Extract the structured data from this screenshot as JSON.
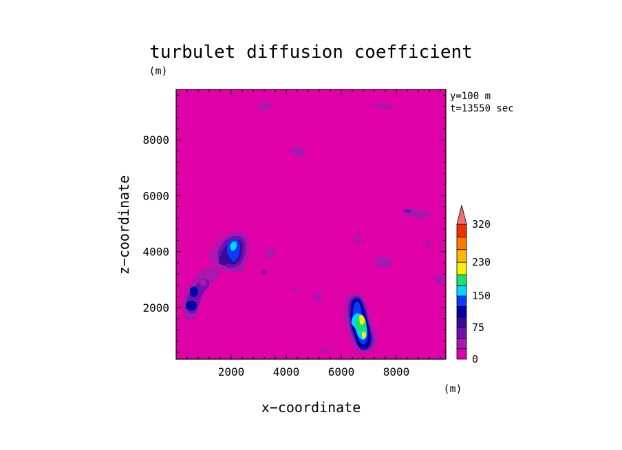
{
  "chart_data": {
    "type": "heatmap",
    "title": "turbulet diffusion coefficient",
    "xlabel": "x−coordinate",
    "ylabel": "z−coordinate",
    "x_unit": "(m)",
    "y_unit": "(m)",
    "annotations": [
      "y=100 m",
      "t=13550 sec"
    ],
    "xlim": [
      0,
      9800
    ],
    "ylim": [
      150,
      9800
    ],
    "x_ticks": [
      2000,
      4000,
      6000,
      8000
    ],
    "x_tick_labels": [
      "2000",
      "4000",
      "6000",
      "8000"
    ],
    "y_ticks": [
      2000,
      4000,
      6000,
      8000
    ],
    "y_tick_labels": [
      "2000",
      "4000",
      "6000",
      "8000"
    ],
    "background_level": 0,
    "colorbar": {
      "levels": [
        0,
        25,
        50,
        75,
        100,
        125,
        150,
        175,
        200,
        230,
        260,
        290,
        320
      ],
      "labels": [
        "0",
        "75",
        "150",
        "230",
        "320"
      ],
      "label_values": [
        0,
        75,
        150,
        230,
        320
      ],
      "colors": [
        "#e000a8",
        "#a818b0",
        "#7010b0",
        "#3a0a98",
        "#0000a8",
        "#0a3aff",
        "#00d8ff",
        "#18e070",
        "#f8f000",
        "#ffb800",
        "#ff7800",
        "#f03000"
      ],
      "extend_color": "#f07070",
      "extend": "max"
    },
    "features": [
      {
        "id": "upper-left-plume",
        "x": 2100,
        "z": 4200,
        "peak": 160
      },
      {
        "id": "left-lower-blob",
        "x": 700,
        "z": 2300,
        "peak": 100
      },
      {
        "id": "right-plume",
        "x": 6800,
        "z": 1400,
        "peak": 220
      }
    ]
  }
}
